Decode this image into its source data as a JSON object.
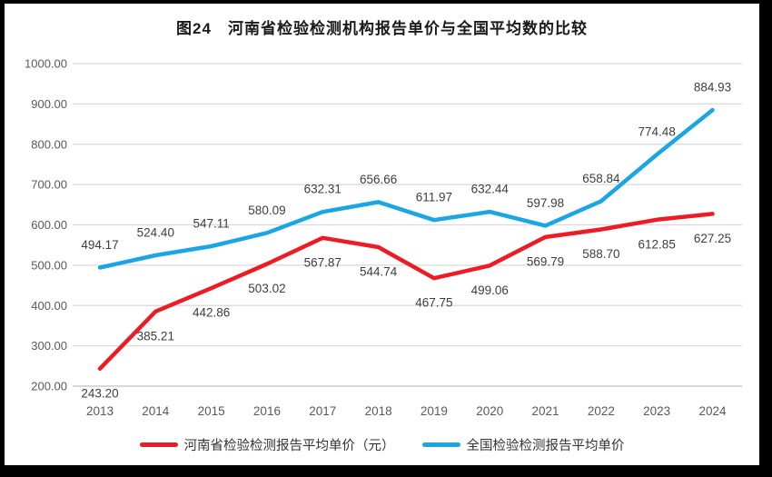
{
  "title": "图24　河南省检验检测机构报告单价与全国平均数的比较",
  "chart_data": {
    "type": "line",
    "categories": [
      "2013",
      "2014",
      "2015",
      "2016",
      "2017",
      "2018",
      "2019",
      "2020",
      "2021",
      "2022",
      "2023",
      "2024"
    ],
    "series": [
      {
        "name": "河南省检验检测报告平均单价（元）",
        "color": "#ED1C24",
        "label_position": "below",
        "values": [
          243.2,
          385.21,
          442.86,
          503.02,
          567.87,
          544.74,
          467.75,
          499.06,
          569.79,
          588.7,
          612.85,
          627.25
        ]
      },
      {
        "name": "全国检验检测报告平均单价",
        "color": "#1BA6E3",
        "label_position": "above",
        "values": [
          494.17,
          524.4,
          547.11,
          580.09,
          632.31,
          656.66,
          611.97,
          632.44,
          597.98,
          658.84,
          774.48,
          884.93
        ]
      }
    ],
    "ylim": [
      200,
      1000
    ],
    "y_ticks": [
      {
        "value": 1000,
        "label": "1000.00"
      },
      {
        "value": 900,
        "label": "900.00"
      },
      {
        "value": 800,
        "label": "800.00"
      },
      {
        "value": 700,
        "label": "700.00"
      },
      {
        "value": 600,
        "label": "600.00"
      },
      {
        "value": 500,
        "label": "500.00"
      },
      {
        "value": 400,
        "label": "400.00"
      },
      {
        "value": 300,
        "label": "300.00"
      },
      {
        "value": 200,
        "label": "200.00"
      }
    ],
    "grid": "horizontal",
    "grid_color": "#D9D9D9",
    "axis_line_color": "#BFBFBF",
    "axis_label_color": "#595959",
    "data_label_color": "#3D3D3D",
    "legend_position": "bottom"
  }
}
